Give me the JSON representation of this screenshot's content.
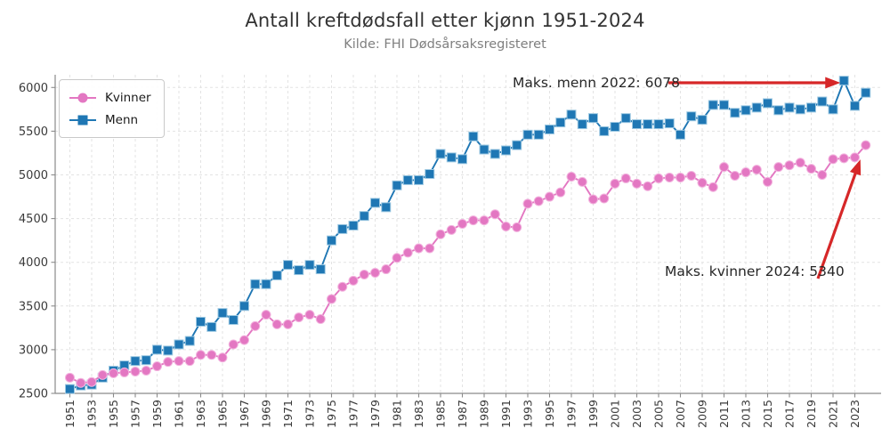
{
  "title": "Antall kreftdødsfall etter kjønn 1951-2024",
  "subtitle": "Kilde: FHI Dødsårsaksregisteret",
  "colors": {
    "kvinner": "#e377c2",
    "kvinner_edge": "#f2b3de",
    "menn": "#1f77b4",
    "menn_edge": "#9ec9e2",
    "annotation_red": "#d62728",
    "grid": "#e3e3e3",
    "spine": "#8a8a8a",
    "tick_label": "#3a3a3a"
  },
  "legend": {
    "items": [
      {
        "label": "Kvinner",
        "marker": "circle",
        "color": "#e377c2"
      },
      {
        "label": "Menn",
        "marker": "square",
        "color": "#1f77b4"
      }
    ]
  },
  "annotations": [
    {
      "id": "max-menn",
      "text": "Maks. menn 2022: 6078",
      "series": "Menn",
      "year": 2022,
      "value": 6078
    },
    {
      "id": "max-kvinner",
      "text": "Maks. kvinner 2024: 5340",
      "series": "Kvinner",
      "year": 2024,
      "value": 5340
    }
  ],
  "chart_data": {
    "type": "line",
    "title": "Antall kreftdødsfall etter kjønn 1951-2024",
    "subtitle": "Kilde: FHI Dødsårsaksregisteret",
    "xlabel": "",
    "ylabel": "",
    "grid": true,
    "legend_position": "upper left",
    "ylim": [
      2480,
      6160
    ],
    "yticks": [
      2500,
      3000,
      3500,
      4000,
      4500,
      5000,
      5500,
      6000
    ],
    "xticks": [
      1951,
      1953,
      1955,
      1957,
      1959,
      1961,
      1963,
      1965,
      1967,
      1969,
      1971,
      1973,
      1975,
      1977,
      1979,
      1981,
      1983,
      1985,
      1987,
      1989,
      1991,
      1993,
      1995,
      1997,
      1999,
      2001,
      2003,
      2005,
      2007,
      2009,
      2011,
      2013,
      2015,
      2017,
      2019,
      2021,
      2023
    ],
    "x": [
      1951,
      1952,
      1953,
      1954,
      1955,
      1956,
      1957,
      1958,
      1959,
      1960,
      1961,
      1962,
      1963,
      1964,
      1965,
      1966,
      1967,
      1968,
      1969,
      1970,
      1971,
      1972,
      1973,
      1974,
      1975,
      1976,
      1977,
      1978,
      1979,
      1980,
      1981,
      1982,
      1983,
      1984,
      1985,
      1986,
      1987,
      1988,
      1989,
      1990,
      1991,
      1992,
      1993,
      1994,
      1995,
      1996,
      1997,
      1998,
      1999,
      2000,
      2001,
      2002,
      2003,
      2004,
      2005,
      2006,
      2007,
      2008,
      2009,
      2010,
      2011,
      2012,
      2013,
      2014,
      2015,
      2016,
      2017,
      2018,
      2019,
      2020,
      2021,
      2022,
      2023,
      2024
    ],
    "series": [
      {
        "name": "Kvinner",
        "color": "#e377c2",
        "marker": "circle",
        "values": [
          2680,
          2620,
          2630,
          2710,
          2730,
          2740,
          2750,
          2760,
          2810,
          2860,
          2870,
          2870,
          2940,
          2940,
          2910,
          3060,
          3110,
          3270,
          3400,
          3290,
          3290,
          3370,
          3400,
          3350,
          3580,
          3720,
          3790,
          3860,
          3880,
          3920,
          4050,
          4110,
          4160,
          4160,
          4320,
          4370,
          4440,
          4480,
          4480,
          4550,
          4410,
          4400,
          4670,
          4700,
          4750,
          4800,
          4980,
          4920,
          4720,
          4730,
          4900,
          4960,
          4900,
          4870,
          4960,
          4970,
          4970,
          4990,
          4910,
          4860,
          5090,
          4990,
          5030,
          5060,
          4920,
          5090,
          5110,
          5140,
          5070,
          5000,
          5180,
          5190,
          5200,
          5340
        ]
      },
      {
        "name": "Menn",
        "color": "#1f77b4",
        "marker": "square",
        "values": [
          2550,
          2590,
          2600,
          2680,
          2760,
          2820,
          2870,
          2880,
          3000,
          2990,
          3060,
          3100,
          3320,
          3260,
          3420,
          3340,
          3500,
          3750,
          3750,
          3850,
          3970,
          3910,
          3970,
          3920,
          4250,
          4380,
          4420,
          4530,
          4680,
          4630,
          4880,
          4940,
          4940,
          5010,
          5240,
          5200,
          5180,
          5440,
          5290,
          5240,
          5280,
          5340,
          5460,
          5460,
          5520,
          5600,
          5690,
          5580,
          5650,
          5500,
          5550,
          5650,
          5580,
          5580,
          5580,
          5590,
          5460,
          5670,
          5630,
          5800,
          5800,
          5710,
          5740,
          5770,
          5820,
          5740,
          5770,
          5750,
          5770,
          5840,
          5750,
          6078,
          5790,
          5940
        ]
      }
    ]
  }
}
